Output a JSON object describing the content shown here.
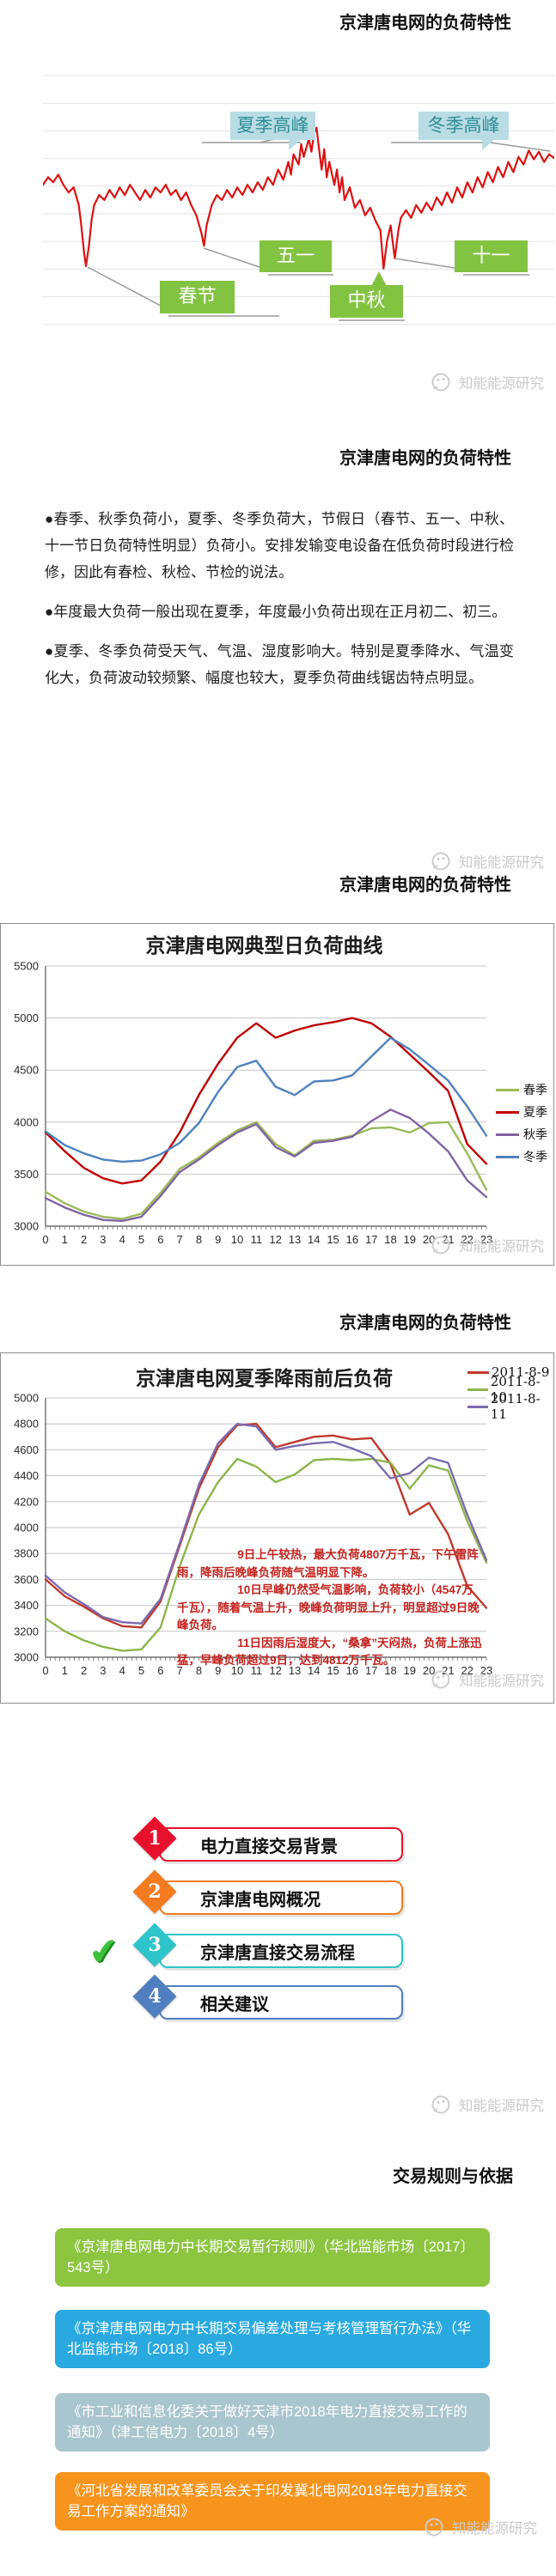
{
  "watermark_text": "知能能源研究",
  "slide1": {
    "title": "京津唐电网的负荷特性"
  },
  "slide2": {
    "title": "京津唐电网的负荷特性",
    "bullets": [
      "●春季、秋季负荷小，夏季、冬季负荷大，节假日（春节、五一、中秋、十一节日负荷特性明显）负荷小。安排发输变电设备在低负荷时段进行检修，因此有春检、秋检、节检的说法。",
      "●年度最大负荷一般出现在夏季，年度最小负荷出现在正月初二、初三。",
      "●夏季、冬季负荷受天气、气温、湿度影响大。特别是夏季降水、气温变化大，负荷波动较频繁、幅度也较大，夏季负荷曲线锯齿特点明显。"
    ]
  },
  "slide3": {
    "title": "京津唐电网的负荷特性"
  },
  "slide4": {
    "title": "京津唐电网的负荷特性"
  },
  "agenda": {
    "check_glyph": "✔",
    "items": [
      {
        "num": "1",
        "label": "电力直接交易背景",
        "color": "#e8112d"
      },
      {
        "num": "2",
        "label": "京津唐电网概况",
        "color": "#f47b20"
      },
      {
        "num": "3",
        "label": "京津唐直接交易流程",
        "color": "#2ec4c9"
      },
      {
        "num": "4",
        "label": "相关建议",
        "color": "#4f7fbf"
      }
    ]
  },
  "rules": {
    "title": "交易规则与依据",
    "boxes": [
      {
        "color": "#8cc540",
        "text": "《京津唐电网电力中长期交易暂行规则》（华北监能市场〔2017〕543号）"
      },
      {
        "color": "#29a9e0",
        "text": "《京津唐电网电力中长期交易偏差处理与考核管理暂行办法》（华北监能市场〔2018〕86号）"
      },
      {
        "color": "#a9c5ce",
        "text": "《市工业和信息化委关于做好天津市2018年电力直接交易工作的通知》（津工信电力〔2018〕4号）"
      },
      {
        "color": "#f7941d",
        "text": "《河北省发展和改革委员会关于印发冀北电网2018年电力直接交易工作方案的通知》"
      }
    ]
  },
  "chart_data": [
    {
      "type": "line",
      "title": "",
      "annotations": {
        "summer_peak": "夏季高峰",
        "winter_peak": "冬季高峰",
        "spring_festival": "春节",
        "may_day": "五一",
        "mid_autumn": "中秋",
        "national_day": "十一"
      },
      "series": [
        {
          "color": "#dd1111",
          "points_percent": [
            [
              0,
              44
            ],
            [
              1,
              41
            ],
            [
              2,
              43
            ],
            [
              3,
              40
            ],
            [
              4,
              44
            ],
            [
              5,
              47
            ],
            [
              6,
              45
            ],
            [
              7,
              52
            ],
            [
              7.5,
              60
            ],
            [
              8,
              70
            ],
            [
              8.4,
              76
            ],
            [
              9,
              68
            ],
            [
              9.5,
              58
            ],
            [
              10,
              52
            ],
            [
              11,
              48
            ],
            [
              12,
              50
            ],
            [
              13,
              46
            ],
            [
              14,
              49
            ],
            [
              15,
              45
            ],
            [
              16,
              48
            ],
            [
              17,
              44
            ],
            [
              18,
              47
            ],
            [
              19,
              50
            ],
            [
              20,
              46
            ],
            [
              21,
              49
            ],
            [
              22,
              45
            ],
            [
              23,
              47
            ],
            [
              24,
              44
            ],
            [
              25,
              48
            ],
            [
              26,
              46
            ],
            [
              27,
              50
            ],
            [
              28,
              47
            ],
            [
              29,
              52
            ],
            [
              30,
              56
            ],
            [
              31,
              63
            ],
            [
              31.5,
              68
            ],
            [
              32,
              60
            ],
            [
              33,
              52
            ],
            [
              34,
              48
            ],
            [
              35,
              50
            ],
            [
              36,
              46
            ],
            [
              37,
              49
            ],
            [
              38,
              45
            ],
            [
              39,
              48
            ],
            [
              40,
              44
            ],
            [
              41,
              47
            ],
            [
              42,
              43
            ],
            [
              43,
              46
            ],
            [
              44,
              41
            ],
            [
              45,
              44
            ],
            [
              46,
              38
            ],
            [
              47,
              42
            ],
            [
              48,
              35
            ],
            [
              48.5,
              40
            ],
            [
              49,
              32
            ],
            [
              50,
              36
            ],
            [
              50.5,
              28
            ],
            [
              51,
              33
            ],
            [
              52,
              26
            ],
            [
              52.5,
              31
            ],
            [
              53,
              24
            ],
            [
              53.5,
              21.5
            ],
            [
              54,
              30
            ],
            [
              54.5,
              38
            ],
            [
              55,
              30
            ],
            [
              55.5,
              41
            ],
            [
              56,
              35
            ],
            [
              57,
              44
            ],
            [
              57.5,
              38
            ],
            [
              58,
              47
            ],
            [
              58.5,
              41
            ],
            [
              59,
              50
            ],
            [
              60,
              45
            ],
            [
              61,
              53
            ],
            [
              62,
              50
            ],
            [
              63,
              56
            ],
            [
              64,
              53
            ],
            [
              65,
              58
            ],
            [
              66,
              62
            ],
            [
              66.6,
              77
            ],
            [
              67.3,
              66
            ],
            [
              68,
              60
            ],
            [
              68.8,
              73
            ],
            [
              69.5,
              62
            ],
            [
              70,
              57
            ],
            [
              71,
              54
            ],
            [
              72,
              57
            ],
            [
              73,
              52
            ],
            [
              74,
              55
            ],
            [
              75,
              51
            ],
            [
              76,
              54
            ],
            [
              77,
              49
            ],
            [
              78,
              52
            ],
            [
              79,
              47
            ],
            [
              80,
              51
            ],
            [
              81,
              45
            ],
            [
              82,
              49
            ],
            [
              83,
              43
            ],
            [
              84,
              47
            ],
            [
              85,
              41
            ],
            [
              86,
              45
            ],
            [
              87,
              39
            ],
            [
              88,
              43
            ],
            [
              89,
              37
            ],
            [
              90,
              41
            ],
            [
              91,
              35
            ],
            [
              92,
              39
            ],
            [
              93,
              33
            ],
            [
              94,
              36
            ],
            [
              95,
              30.5
            ],
            [
              96,
              34
            ],
            [
              97,
              31
            ],
            [
              98,
              35
            ],
            [
              99,
              32
            ],
            [
              100,
              33.5
            ]
          ]
        }
      ]
    },
    {
      "type": "line",
      "title": "京津唐电网典型日负荷曲线",
      "xlabel": "",
      "ylabel": "",
      "ylim": [
        3000,
        5500
      ],
      "ystep": 500,
      "legend_position": "right",
      "categories": [
        0,
        1,
        2,
        3,
        4,
        5,
        6,
        7,
        8,
        9,
        10,
        11,
        12,
        13,
        14,
        15,
        16,
        17,
        18,
        19,
        20,
        21,
        22,
        23
      ],
      "series": [
        {
          "name": "春季",
          "color": "#9bbb59",
          "values": [
            3330,
            3220,
            3140,
            3090,
            3070,
            3120,
            3320,
            3550,
            3660,
            3800,
            3920,
            4000,
            3790,
            3680,
            3820,
            3830,
            3870,
            3940,
            3950,
            3900,
            3990,
            4000,
            3700,
            3350
          ]
        },
        {
          "name": "夏季",
          "color": "#c00000",
          "values": [
            3900,
            3720,
            3560,
            3460,
            3410,
            3440,
            3620,
            3900,
            4260,
            4560,
            4810,
            4950,
            4810,
            4880,
            4930,
            4960,
            5000,
            4950,
            4820,
            4650,
            4480,
            4300,
            3790,
            3600
          ]
        },
        {
          "name": "秋季",
          "color": "#8064a2",
          "values": [
            3270,
            3180,
            3110,
            3060,
            3050,
            3090,
            3290,
            3520,
            3640,
            3780,
            3900,
            3980,
            3760,
            3670,
            3800,
            3820,
            3860,
            4010,
            4120,
            4040,
            3890,
            3720,
            3440,
            3280
          ]
        },
        {
          "name": "冬季",
          "color": "#4f81bd",
          "values": [
            3910,
            3780,
            3700,
            3640,
            3620,
            3630,
            3690,
            3800,
            3990,
            4290,
            4530,
            4590,
            4340,
            4260,
            4390,
            4400,
            4450,
            4630,
            4810,
            4700,
            4550,
            4400,
            4150,
            3870
          ]
        }
      ]
    },
    {
      "type": "line",
      "title": "京津唐电网夏季降雨前后负荷",
      "xlabel": "",
      "ylabel": "",
      "ylim": [
        3000,
        5000
      ],
      "ystep": 200,
      "legend_position": "top-right",
      "categories": [
        0,
        1,
        2,
        3,
        4,
        5,
        6,
        7,
        8,
        9,
        10,
        11,
        12,
        13,
        14,
        15,
        16,
        17,
        18,
        19,
        20,
        21,
        22,
        23
      ],
      "series": [
        {
          "name": "2011-8-9",
          "color": "#c0392b",
          "values": [
            3600,
            3470,
            3390,
            3300,
            3240,
            3230,
            3430,
            3860,
            4300,
            4620,
            4790,
            4800,
            4620,
            4660,
            4700,
            4710,
            4680,
            4690,
            4490,
            4100,
            4190,
            3950,
            3550,
            3380
          ]
        },
        {
          "name": "2011-8-10",
          "color": "#8db54a",
          "values": [
            3300,
            3200,
            3130,
            3080,
            3050,
            3060,
            3230,
            3700,
            4100,
            4350,
            4530,
            4470,
            4350,
            4410,
            4520,
            4530,
            4520,
            4530,
            4500,
            4300,
            4480,
            4440,
            4050,
            3730
          ]
        },
        {
          "name": "2011-8-11",
          "color": "#7b6bb0",
          "values": [
            3630,
            3500,
            3410,
            3310,
            3270,
            3260,
            3450,
            3880,
            4330,
            4650,
            4800,
            4780,
            4600,
            4630,
            4650,
            4660,
            4610,
            4550,
            4380,
            4420,
            4540,
            4500,
            4100,
            3750
          ]
        }
      ],
      "annotation": [
        "9日上午较热，最大负荷4807万千瓦，下午雷阵雨，降雨后晚峰负荷随气温明显下降。",
        "10日早峰仍然受气温影响，负荷较小（4547万千瓦），随着气温上升，晚峰负荷明显上升，明显超过9日晚峰负荷。",
        "11日因雨后湿度大，“桑拿”天闷热，负荷上涨迅猛，早峰负荷超过9日，达到4812万千瓦。"
      ]
    }
  ]
}
